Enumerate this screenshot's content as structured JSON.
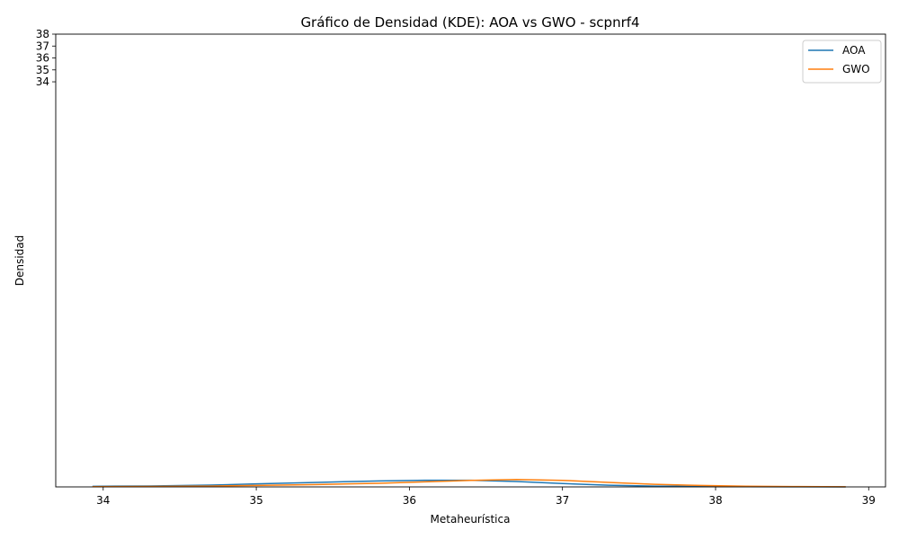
{
  "chart_data": {
    "type": "line",
    "title": "Gráfico de Densidad (KDE): AOA vs GWO - scpnrf4",
    "xlabel": "Metaheurística",
    "ylabel": "Densidad",
    "xlim": [
      33.69,
      39.11
    ],
    "ylim": [
      0,
      38
    ],
    "x_ticks": [
      "34",
      "35",
      "36",
      "37",
      "38",
      "39"
    ],
    "x_tick_values": [
      34,
      35,
      36,
      37,
      38,
      39
    ],
    "y_ticks": [
      "34",
      "35",
      "36",
      "37",
      "38"
    ],
    "y_tick_values": [
      34,
      35,
      36,
      37,
      38
    ],
    "grid": false,
    "legend_position": "top-right",
    "series": [
      {
        "name": "AOA",
        "color": "#1f77b4",
        "x": [
          33.93,
          34.3,
          34.7,
          35.0,
          35.4,
          35.8,
          36.1,
          36.4,
          36.7,
          37.0,
          37.3,
          37.6,
          37.9,
          38.2,
          38.5,
          38.85
        ],
        "y": [
          0.05,
          0.08,
          0.15,
          0.25,
          0.38,
          0.5,
          0.56,
          0.56,
          0.45,
          0.28,
          0.14,
          0.07,
          0.04,
          0.02,
          0.01,
          0.0
        ]
      },
      {
        "name": "GWO",
        "color": "#ff7f0e",
        "x": [
          33.93,
          34.3,
          34.7,
          35.0,
          35.4,
          35.8,
          36.1,
          36.4,
          36.7,
          37.0,
          37.3,
          37.6,
          37.9,
          38.2,
          38.5,
          38.85
        ],
        "y": [
          0.02,
          0.04,
          0.07,
          0.12,
          0.2,
          0.3,
          0.42,
          0.55,
          0.62,
          0.55,
          0.38,
          0.22,
          0.12,
          0.06,
          0.03,
          0.01
        ]
      }
    ]
  }
}
